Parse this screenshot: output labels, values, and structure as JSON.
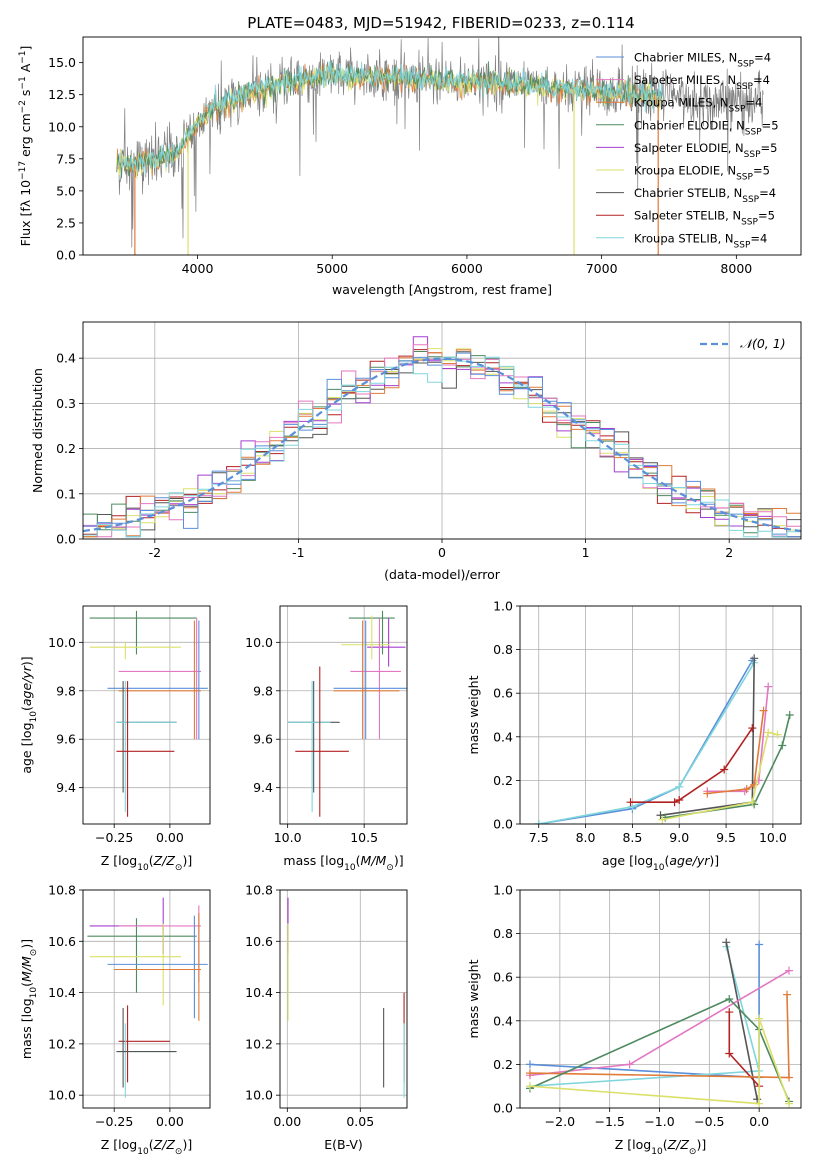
{
  "figure": {
    "title": "PLATE=0483, MJD=51942, FIBERID=0233, z=0.114",
    "colors": {
      "chabrier_miles": "#5b8fd9",
      "salpeter_miles": "#e377c2",
      "kroupa_miles": "#e07b39",
      "chabrier_elodie": "#4e8a5f",
      "salpeter_elodie": "#a53fd0",
      "kroupa_elodie": "#dbe06a",
      "chabrier_stelib": "#555555",
      "salpeter_stelib": "#b22222",
      "kroupa_stelib": "#7fd6dc",
      "grey_spectrum": "#808080",
      "gauss": "#5b8fd9",
      "grid": "#b0b0b0"
    }
  },
  "chart_data": [
    {
      "id": "spectrum",
      "type": "line",
      "xlabel": "wavelength [Angstrom, rest frame]",
      "ylabel": "Flux [f_λ 10^-17 erg cm^-2 s^-1 A^-1]",
      "ylabel_parts": {
        "a": "Flux [f",
        "sub": "λ",
        "b": "10",
        "sup1": "−17",
        "c": " erg cm",
        "sup2": "−2",
        "d": " s",
        "sup3": "−1",
        "e": " A",
        "sup4": "−1",
        "f": "]"
      },
      "xlim": [
        3150,
        8480
      ],
      "ylim": [
        0,
        17
      ],
      "xticks": [
        4000,
        5000,
        6000,
        7000,
        8000
      ],
      "yticks": [
        0.0,
        2.5,
        5.0,
        7.5,
        10.0,
        12.5,
        15.0
      ],
      "ytick_labels": [
        "0.0",
        "2.5",
        "5.0",
        "7.5",
        "10.0",
        "12.5",
        "15.0"
      ],
      "grid": false,
      "legend_position": "right",
      "legend": [
        {
          "name": "Chabrier MILES",
          "nssp": "4",
          "color_key": "chabrier_miles"
        },
        {
          "name": "Salpeter MILES",
          "nssp": "4",
          "color_key": "salpeter_miles"
        },
        {
          "name": "Kroupa MILES",
          "nssp": "4",
          "color_key": "kroupa_miles"
        },
        {
          "name": "Chabrier ELODIE",
          "nssp": "5",
          "color_key": "chabrier_elodie"
        },
        {
          "name": "Salpeter ELODIE",
          "nssp": "5",
          "color_key": "salpeter_elodie"
        },
        {
          "name": "Kroupa ELODIE",
          "nssp": "5",
          "color_key": "kroupa_elodie"
        },
        {
          "name": "Chabrier STELIB",
          "nssp": "4",
          "color_key": "chabrier_stelib"
        },
        {
          "name": "Salpeter STELIB",
          "nssp": "5",
          "color_key": "salpeter_stelib"
        },
        {
          "name": "Kroupa STELIB",
          "nssp": "4",
          "color_key": "kroupa_stelib"
        }
      ],
      "nssp_label": "N",
      "nssp_sub": "SSP",
      "continuum": [
        [
          3400,
          7.2
        ],
        [
          3520,
          7.0
        ],
        [
          3700,
          7.4
        ],
        [
          3850,
          8.0
        ],
        [
          3950,
          9.5
        ],
        [
          4100,
          11.4
        ],
        [
          4300,
          12.3
        ],
        [
          4600,
          13.3
        ],
        [
          4900,
          13.9
        ],
        [
          5200,
          14.0
        ],
        [
          5500,
          13.8
        ],
        [
          5800,
          13.6
        ],
        [
          6100,
          13.5
        ],
        [
          6400,
          13.3
        ],
        [
          6700,
          13.0
        ],
        [
          7000,
          12.7
        ],
        [
          7300,
          12.4
        ],
        [
          7600,
          12.2
        ],
        [
          7900,
          12.0
        ],
        [
          8200,
          11.8
        ]
      ],
      "model_end_x": 7450,
      "spikes_down": [
        [
          3535,
          0.0
        ],
        [
          3930,
          0.0
        ],
        [
          6795,
          0.0
        ],
        [
          7420,
          0.0
        ]
      ]
    },
    {
      "id": "residuals",
      "type": "histogram",
      "xlabel": "(data-model)/error",
      "ylabel": "Normed distribution",
      "xlim": [
        -2.5,
        2.5
      ],
      "ylim": [
        0,
        0.48
      ],
      "xticks": [
        -2,
        -1,
        0,
        1,
        2
      ],
      "yticks": [
        0.0,
        0.1,
        0.2,
        0.3,
        0.4
      ],
      "ytick_labels": [
        "0.0",
        "0.1",
        "0.2",
        "0.3",
        "0.4"
      ],
      "grid": true,
      "legend_position": "top-right",
      "gauss_label": "𝒩(0, 1)",
      "bin_width": 0.1,
      "bin_start": -2.5
    },
    {
      "id": "age_vs_Z",
      "type": "errorbar",
      "xlabel": "Z [log10(Z/Z⊙)]",
      "ylabel": "age [log10(age/yr)]",
      "xlim": [
        -0.39,
        0.18
      ],
      "ylim": [
        9.25,
        10.15
      ],
      "xticks": [
        -0.25,
        0.0
      ],
      "xtick_labels": [
        "−0.25",
        "0.00"
      ],
      "yticks": [
        9.4,
        9.6,
        9.8,
        10.0
      ],
      "ytick_labels": [
        "9.4",
        "9.6",
        "9.8",
        "10.0"
      ],
      "grid": true,
      "points": [
        {
          "c": "chabrier_elodie",
          "x": -0.15,
          "xe": [
            -0.36,
            0.12
          ],
          "y": 10.1,
          "ye": [
            9.95,
            10.13
          ]
        },
        {
          "c": "kroupa_elodie",
          "x": -0.2,
          "xe": [
            -0.36,
            0.05
          ],
          "y": 9.98,
          "ye": [
            9.93,
            10.0
          ]
        },
        {
          "c": "salpeter_miles",
          "x": 0.12,
          "xe": [
            -0.23,
            0.14
          ],
          "y": 9.88,
          "ye": [
            9.6,
            10.1
          ]
        },
        {
          "c": "chabrier_miles",
          "x": 0.13,
          "xe": [
            -0.28,
            0.17
          ],
          "y": 9.81,
          "ye": [
            9.6,
            10.09
          ]
        },
        {
          "c": "kroupa_miles",
          "x": 0.11,
          "xe": [
            -0.23,
            0.14
          ],
          "y": 9.8,
          "ye": [
            9.6,
            10.09
          ]
        },
        {
          "c": "chabrier_stelib",
          "x": -0.21,
          "xe": [
            -0.24,
            0.03
          ],
          "y": 9.67,
          "ye": [
            9.38,
            9.84
          ]
        },
        {
          "c": "kroupa_stelib",
          "x": -0.2,
          "xe": [
            -0.24,
            0.03
          ],
          "y": 9.67,
          "ye": [
            9.3,
            9.84
          ]
        },
        {
          "c": "salpeter_stelib",
          "x": -0.19,
          "xe": [
            -0.24,
            0.02
          ],
          "y": 9.55,
          "ye": [
            9.28,
            9.84
          ]
        }
      ]
    },
    {
      "id": "age_vs_mass",
      "type": "errorbar",
      "xlabel": "mass [log10(M/M⊙)]",
      "ylabel": "",
      "xlim": [
        9.95,
        10.78
      ],
      "ylim": [
        9.25,
        10.15
      ],
      "xticks": [
        10.0,
        10.5
      ],
      "xtick_labels": [
        "10.0",
        "10.5"
      ],
      "yticks": [
        9.4,
        9.6,
        9.8,
        10.0
      ],
      "ytick_labels": [
        "9.4",
        "9.6",
        "9.8",
        "10.0"
      ],
      "grid": true,
      "points": [
        {
          "c": "chabrier_elodie",
          "x": 10.62,
          "xe": [
            10.4,
            10.7
          ],
          "y": 10.1,
          "ye": [
            9.95,
            10.13
          ]
        },
        {
          "c": "salpeter_elodie",
          "x": 10.66,
          "xe": [
            10.52,
            10.77
          ],
          "y": 9.98,
          "ye": [
            9.9,
            10.1
          ]
        },
        {
          "c": "kroupa_elodie",
          "x": 10.55,
          "xe": [
            10.35,
            10.67
          ],
          "y": 9.99,
          "ye": [
            9.93,
            10.11
          ]
        },
        {
          "c": "salpeter_miles",
          "x": 10.6,
          "xe": [
            10.41,
            10.74
          ],
          "y": 9.88,
          "ye": [
            9.6,
            10.1
          ]
        },
        {
          "c": "chabrier_miles",
          "x": 10.51,
          "xe": [
            10.3,
            10.78
          ],
          "y": 9.81,
          "ye": [
            9.6,
            10.09
          ]
        },
        {
          "c": "kroupa_miles",
          "x": 10.49,
          "xe": [
            10.3,
            10.73
          ],
          "y": 9.8,
          "ye": [
            9.6,
            10.09
          ]
        },
        {
          "c": "chabrier_stelib",
          "x": 10.17,
          "xe": [
            10.0,
            10.34
          ],
          "y": 9.67,
          "ye": [
            9.38,
            9.84
          ]
        },
        {
          "c": "kroupa_stelib",
          "x": 10.16,
          "xe": [
            10.0,
            10.28
          ],
          "y": 9.67,
          "ye": [
            9.3,
            9.84
          ]
        },
        {
          "c": "salpeter_stelib",
          "x": 10.21,
          "xe": [
            10.05,
            10.4
          ],
          "y": 9.55,
          "ye": [
            9.28,
            9.9
          ]
        }
      ]
    },
    {
      "id": "weight_vs_age",
      "type": "line",
      "xlabel": "age [log10(age/yr)]",
      "ylabel": "mass weight",
      "xlim": [
        7.3,
        10.3
      ],
      "ylim": [
        0,
        1
      ],
      "xticks": [
        7.5,
        8.0,
        8.5,
        9.0,
        9.5,
        10.0
      ],
      "xtick_labels": [
        "7.5",
        "8.0",
        "8.5",
        "9.0",
        "9.5",
        "10.0"
      ],
      "yticks": [
        0.0,
        0.2,
        0.4,
        0.6,
        0.8,
        1.0
      ],
      "ytick_labels": [
        "0.0",
        "0.2",
        "0.4",
        "0.6",
        "0.8",
        "1.0"
      ],
      "grid": true,
      "series": [
        {
          "c": "chabrier_miles",
          "x": [
            7.5,
            8.5,
            9.0,
            9.78
          ],
          "y": [
            0.0,
            0.07,
            0.17,
            0.75
          ]
        },
        {
          "c": "kroupa_stelib",
          "x": [
            7.5,
            8.5,
            9.0,
            9.8
          ],
          "y": [
            0.0,
            0.08,
            0.17,
            0.74
          ]
        },
        {
          "c": "chabrier_stelib",
          "x": [
            8.8,
            9.78,
            9.8
          ],
          "y": [
            0.04,
            0.1,
            0.76
          ]
        },
        {
          "c": "salpeter_stelib",
          "x": [
            8.48,
            8.95,
            9.0,
            9.48,
            9.78
          ],
          "y": [
            0.1,
            0.1,
            0.11,
            0.25,
            0.44
          ]
        },
        {
          "c": "salpeter_miles",
          "x": [
            9.3,
            9.7,
            9.85,
            9.95
          ],
          "y": [
            0.15,
            0.15,
            0.2,
            0.63
          ]
        },
        {
          "c": "kroupa_miles",
          "x": [
            9.3,
            9.72,
            9.8,
            9.9
          ],
          "y": [
            0.14,
            0.16,
            0.18,
            0.52
          ]
        },
        {
          "c": "chabrier_elodie",
          "x": [
            8.85,
            9.8,
            10.1,
            10.18
          ],
          "y": [
            0.03,
            0.09,
            0.36,
            0.5
          ]
        },
        {
          "c": "kroupa_elodie",
          "x": [
            8.82,
            9.78,
            9.95,
            10.05
          ],
          "y": [
            0.02,
            0.1,
            0.42,
            0.41
          ]
        }
      ]
    },
    {
      "id": "mass_vs_Z",
      "type": "errorbar",
      "xlabel": "Z [log10(Z/Z⊙)]",
      "ylabel": "mass [log10(M/M⊙)]",
      "xlim": [
        -0.39,
        0.18
      ],
      "ylim": [
        9.95,
        10.8
      ],
      "xticks": [
        -0.25,
        0.0
      ],
      "xtick_labels": [
        "−0.25",
        "0.00"
      ],
      "yticks": [
        10.0,
        10.2,
        10.4,
        10.6,
        10.8
      ],
      "ytick_labels": [
        "10.0",
        "10.2",
        "10.4",
        "10.6",
        "10.8"
      ],
      "grid": true,
      "points": [
        {
          "c": "salpeter_elodie",
          "x": -0.03,
          "xe": [
            -0.36,
            -0.03
          ],
          "y": 10.66,
          "ye": [
            10.55,
            10.77
          ]
        },
        {
          "c": "chabrier_elodie",
          "x": -0.15,
          "xe": [
            -0.37,
            0.12
          ],
          "y": 10.62,
          "ye": [
            10.4,
            10.69
          ]
        },
        {
          "c": "salpeter_miles",
          "x": 0.13,
          "xe": [
            -0.23,
            0.14
          ],
          "y": 10.66,
          "ye": [
            10.44,
            10.74
          ]
        },
        {
          "c": "kroupa_elodie",
          "x": -0.03,
          "xe": [
            -0.36,
            0.05
          ],
          "y": 10.54,
          "ye": [
            10.35,
            10.67
          ]
        },
        {
          "c": "chabrier_miles",
          "x": 0.11,
          "xe": [
            -0.28,
            0.17
          ],
          "y": 10.51,
          "ye": [
            10.3,
            10.7
          ]
        },
        {
          "c": "kroupa_miles",
          "x": 0.13,
          "xe": [
            -0.25,
            0.14
          ],
          "y": 10.49,
          "ye": [
            10.29,
            10.71
          ]
        },
        {
          "c": "salpeter_stelib",
          "x": -0.19,
          "xe": [
            -0.23,
            0.0
          ],
          "y": 10.21,
          "ye": [
            10.05,
            10.35
          ]
        },
        {
          "c": "kroupa_stelib",
          "x": -0.2,
          "xe": [
            -0.24,
            0.02
          ],
          "y": 10.17,
          "ye": [
            9.99,
            10.28
          ]
        },
        {
          "c": "chabrier_stelib",
          "x": -0.21,
          "xe": [
            -0.24,
            0.03
          ],
          "y": 10.17,
          "ye": [
            10.03,
            10.34
          ]
        }
      ]
    },
    {
      "id": "mass_vs_ebv",
      "type": "errorbar",
      "xlabel": "E(B-V)",
      "ylabel": "",
      "xlim": [
        -0.005,
        0.082
      ],
      "ylim": [
        9.95,
        10.8
      ],
      "xticks": [
        0.0,
        0.05
      ],
      "xtick_labels": [
        "0.00",
        "0.05"
      ],
      "yticks": [
        10.0,
        10.2,
        10.4,
        10.6,
        10.8
      ],
      "ytick_labels": [
        "10.0",
        "10.2",
        "10.4",
        "10.6",
        "10.8"
      ],
      "grid": true,
      "points": [
        {
          "c": "salpeter_elodie",
          "x": 0.0005,
          "xe": [
            0.0005,
            0.0005
          ],
          "y": 10.66,
          "ye": [
            10.55,
            10.77
          ]
        },
        {
          "c": "kroupa_elodie",
          "x": 0.0005,
          "xe": [
            0.0005,
            0.0005
          ],
          "y": 10.54,
          "ye": [
            10.29,
            10.67
          ]
        },
        {
          "c": "chabrier_stelib",
          "x": 0.066,
          "xe": [
            0.066,
            0.066
          ],
          "y": 10.17,
          "ye": [
            10.03,
            10.34
          ]
        },
        {
          "c": "salpeter_stelib",
          "x": 0.08,
          "xe": [
            0.08,
            0.08
          ],
          "y": 10.21,
          "ye": [
            10.05,
            10.4
          ]
        },
        {
          "c": "kroupa_stelib",
          "x": 0.08,
          "xe": [
            0.08,
            0.08
          ],
          "y": 10.17,
          "ye": [
            9.99,
            10.28
          ]
        }
      ]
    },
    {
      "id": "weight_vs_Z",
      "type": "line",
      "xlabel": "Z [log10(Z/Z⊙)]",
      "ylabel": "mass weight",
      "xlim": [
        -2.4,
        0.42
      ],
      "ylim": [
        0,
        1
      ],
      "xticks": [
        -2.0,
        -1.5,
        -1.0,
        -0.5,
        0.0
      ],
      "xtick_labels": [
        "−2.0",
        "−1.5",
        "−1.0",
        "−0.5",
        "0.0"
      ],
      "yticks": [
        0.0,
        0.2,
        0.4,
        0.6,
        0.8,
        1.0
      ],
      "ytick_labels": [
        "0.0",
        "0.2",
        "0.4",
        "0.6",
        "0.8",
        "1.0"
      ],
      "grid": true,
      "series": [
        {
          "c": "chabrier_miles",
          "x": [
            -2.3,
            0.0,
            0.0
          ],
          "y": [
            0.2,
            0.14,
            0.75
          ]
        },
        {
          "c": "kroupa_stelib",
          "x": [
            -0.33,
            0.0,
            -2.3
          ],
          "y": [
            0.74,
            0.17,
            0.1
          ]
        },
        {
          "c": "chabrier_stelib",
          "x": [
            -0.33,
            -0.02
          ],
          "y": [
            0.76,
            0.04
          ]
        },
        {
          "c": "salpeter_stelib",
          "x": [
            -0.3,
            -0.3,
            0.0
          ],
          "y": [
            0.44,
            0.25,
            0.1
          ]
        },
        {
          "c": "salpeter_miles",
          "x": [
            -2.3,
            -1.3,
            0.3
          ],
          "y": [
            0.15,
            0.2,
            0.63
          ]
        },
        {
          "c": "kroupa_miles",
          "x": [
            -2.3,
            0.3,
            0.28
          ],
          "y": [
            0.16,
            0.14,
            0.52
          ]
        },
        {
          "c": "chabrier_elodie",
          "x": [
            -2.3,
            -0.3,
            0.0,
            0.3
          ],
          "y": [
            0.09,
            0.5,
            0.36,
            0.03
          ]
        },
        {
          "c": "kroupa_elodie",
          "x": [
            -2.3,
            0.0,
            0.0,
            0.3
          ],
          "y": [
            0.1,
            0.02,
            0.41,
            0.02
          ]
        }
      ]
    }
  ]
}
